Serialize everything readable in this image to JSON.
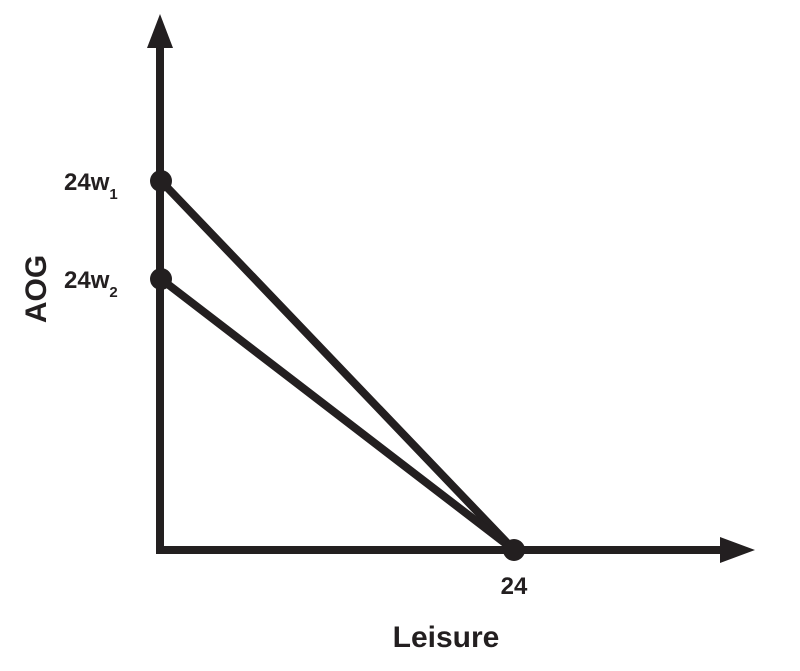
{
  "diagram": {
    "x_axis_label": "Leisure",
    "y_axis_label": "AOG",
    "x_intercept_label": "24",
    "points": [
      {
        "base": "24w",
        "sub": "1"
      },
      {
        "base": "24w",
        "sub": "2"
      }
    ],
    "colors": {
      "ink": "#231f20",
      "background": "#ffffff"
    }
  }
}
